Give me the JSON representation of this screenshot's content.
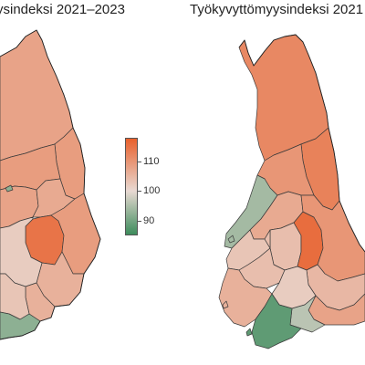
{
  "titles": {
    "left": "ysindeksi 2021–2023",
    "right": "Työkyvyttömyysindeksi 2021"
  },
  "legend": {
    "min": 85,
    "max": 118,
    "ticks": [
      {
        "label": "110",
        "value": 110
      },
      {
        "label": "100",
        "value": 100
      },
      {
        "label": "90",
        "value": 90
      }
    ],
    "colors": {
      "high": "#e8602c",
      "mid": "#e8d9d2",
      "low": "#3d8c5c"
    }
  },
  "maps": {
    "left": {
      "north": 108,
      "kainuu": 109,
      "north_ostrobothnia": 109,
      "west_coast": 108,
      "central": 107,
      "savo_north": 115,
      "karelia_north": 109,
      "savo_south": 106,
      "kymenlaakso": 106,
      "hame": 102,
      "pirkanmaa": 102,
      "satakunta": 103,
      "southwest": 101,
      "uusimaa": 92,
      "uusimaa_east": 103
    },
    "right": {
      "north": 112,
      "kainuu": 113,
      "north_ostrobothnia": 110,
      "west_coast": 107,
      "ostrobothnia": 94,
      "central": 104,
      "savo_north": 116,
      "karelia_north": 110,
      "savo_south": 105,
      "kymenlaakso": 108,
      "hame": 102,
      "pirkanmaa": 104,
      "satakunta": 103,
      "southwest": 106,
      "uusimaa": 88,
      "uusimaa_east": 96
    }
  }
}
